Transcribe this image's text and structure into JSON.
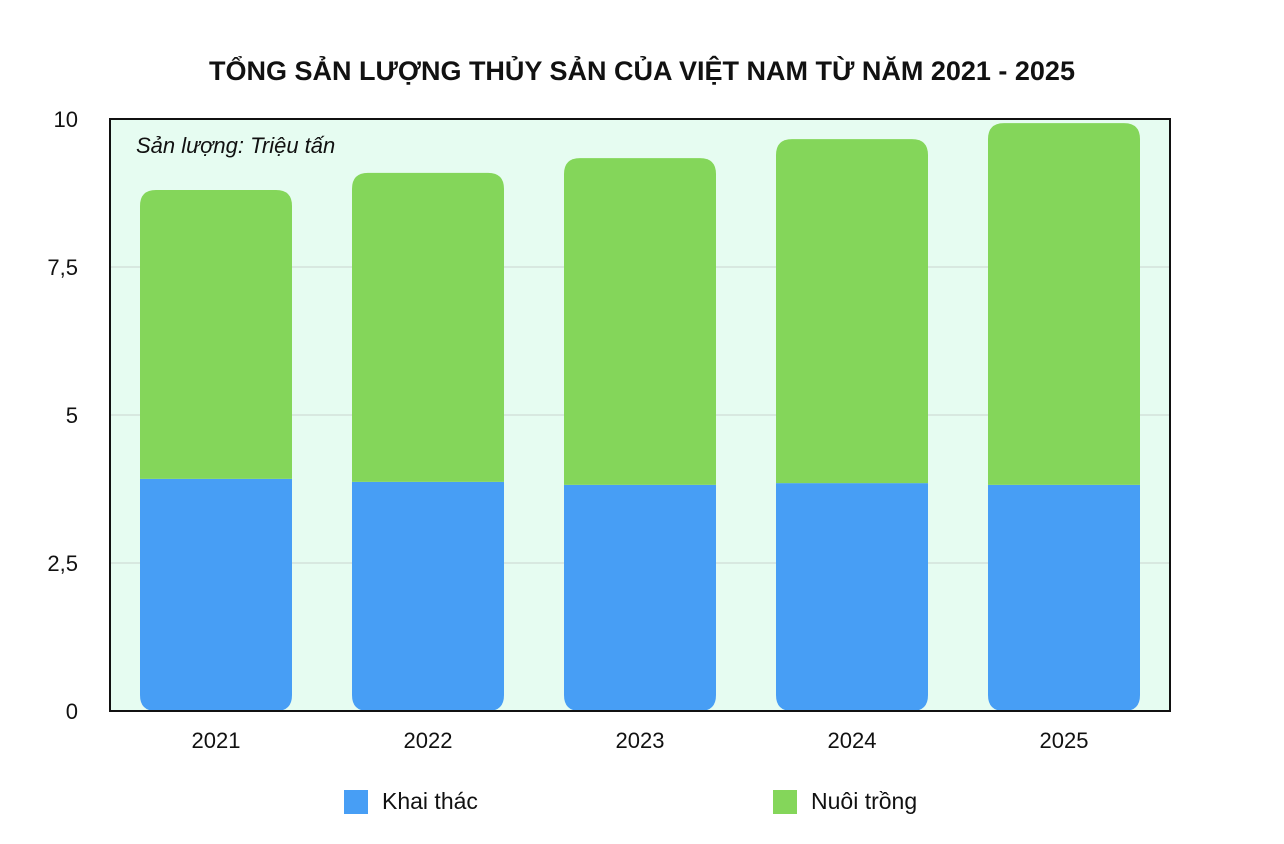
{
  "chart_data": {
    "type": "bar",
    "stacked": true,
    "title": "TỔNG SẢN LƯỢNG THỦY SẢN CỦA VIỆT NAM TỪ NĂM 2021 - 2025",
    "unit_note": "Sản lượng: Triệu tấn",
    "categories": [
      "2021",
      "2022",
      "2023",
      "2024",
      "2025"
    ],
    "series": [
      {
        "name": "Khai thác",
        "color": "#479ef5",
        "values": [
          3.92,
          3.87,
          3.82,
          3.85,
          3.82
        ]
      },
      {
        "name": "Nuôi trồng",
        "color": "#84d65a",
        "values": [
          4.88,
          5.22,
          5.52,
          5.81,
          6.11
        ]
      }
    ],
    "ylim": [
      0,
      10
    ],
    "yticks": [
      0,
      2.5,
      5,
      7.5,
      10
    ],
    "ytick_labels": [
      "0",
      "2,5",
      "5",
      "7,5",
      "10"
    ],
    "grid": true,
    "plot_background": "#e6fcf1",
    "legend_position": "bottom"
  }
}
